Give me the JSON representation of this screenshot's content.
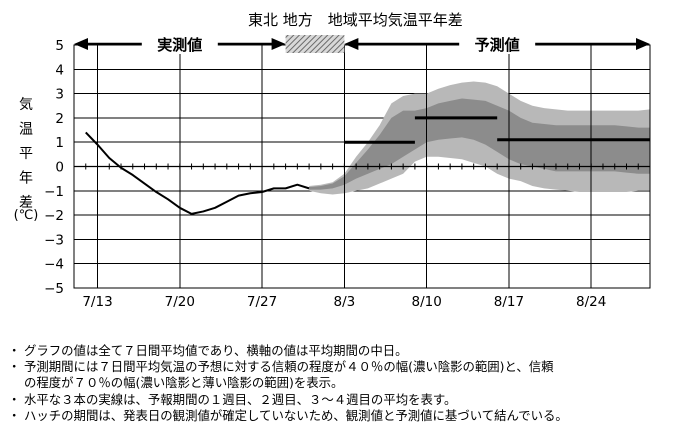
{
  "chart_data": {
    "type": "line",
    "title": "東北 地方　地域平均気温平年差",
    "ylabel_chars": [
      "気",
      "温",
      "平",
      "年",
      "差"
    ],
    "yunit": "(℃)",
    "ylim": [
      -5,
      5
    ],
    "yticks": [
      5,
      4,
      3,
      2,
      1,
      0,
      -1,
      -2,
      -3,
      -4,
      -5
    ],
    "xlim": [
      "2023-07-11",
      "2023-08-29"
    ],
    "xticks": [
      {
        "date": "2023-07-13",
        "label": "7/13"
      },
      {
        "date": "2023-07-20",
        "label": "7/20"
      },
      {
        "date": "2023-07-27",
        "label": "7/27"
      },
      {
        "date": "2023-08-03",
        "label": "8/3"
      },
      {
        "date": "2023-08-10",
        "label": "8/10"
      },
      {
        "date": "2023-08-17",
        "label": "8/17"
      },
      {
        "date": "2023-08-24",
        "label": "8/24"
      }
    ],
    "periods": {
      "observed_label": "実測値",
      "observed_range": [
        "2023-07-11",
        "2023-07-29"
      ],
      "hatch_range": [
        "2023-07-29",
        "2023-08-03"
      ],
      "forecast_label": "予測値",
      "forecast_range": [
        "2023-08-03",
        "2023-08-29"
      ]
    },
    "observed": [
      [
        "2023-07-12",
        1.4
      ],
      [
        "2023-07-13",
        0.9
      ],
      [
        "2023-07-14",
        0.35
      ],
      [
        "2023-07-15",
        -0.05
      ],
      [
        "2023-07-16",
        -0.35
      ],
      [
        "2023-07-17",
        -0.7
      ],
      [
        "2023-07-18",
        -1.05
      ],
      [
        "2023-07-19",
        -1.35
      ],
      [
        "2023-07-20",
        -1.7
      ],
      [
        "2023-07-21",
        -1.95
      ],
      [
        "2023-07-22",
        -1.85
      ],
      [
        "2023-07-23",
        -1.7
      ],
      [
        "2023-07-24",
        -1.45
      ],
      [
        "2023-07-25",
        -1.2
      ],
      [
        "2023-07-26",
        -1.1
      ],
      [
        "2023-07-27",
        -1.05
      ],
      [
        "2023-07-28",
        -0.9
      ],
      [
        "2023-07-29",
        -0.9
      ],
      [
        "2023-07-30",
        -0.75
      ],
      [
        "2023-07-31",
        -0.9
      ]
    ],
    "band_70": [
      [
        "2023-07-31",
        -1.0,
        -0.8
      ],
      [
        "2023-08-01",
        -1.1,
        -0.75
      ],
      [
        "2023-08-02",
        -1.15,
        -0.65
      ],
      [
        "2023-08-03",
        -1.1,
        -0.3
      ],
      [
        "2023-08-04",
        -1.0,
        0.4
      ],
      [
        "2023-08-05",
        -0.9,
        1.0
      ],
      [
        "2023-08-06",
        -0.7,
        1.7
      ],
      [
        "2023-08-07",
        -0.5,
        2.6
      ],
      [
        "2023-08-08",
        -0.3,
        2.9
      ],
      [
        "2023-08-09",
        0.2,
        3.0
      ],
      [
        "2023-08-10",
        0.4,
        3.0
      ],
      [
        "2023-08-11",
        0.4,
        3.2
      ],
      [
        "2023-08-12",
        0.35,
        3.35
      ],
      [
        "2023-08-13",
        0.3,
        3.45
      ],
      [
        "2023-08-14",
        0.15,
        3.5
      ],
      [
        "2023-08-15",
        0.0,
        3.45
      ],
      [
        "2023-08-16",
        -0.3,
        3.3
      ],
      [
        "2023-08-17",
        -0.5,
        3.0
      ],
      [
        "2023-08-18",
        -0.6,
        2.7
      ],
      [
        "2023-08-19",
        -0.8,
        2.5
      ],
      [
        "2023-08-20",
        -0.9,
        2.4
      ],
      [
        "2023-08-21",
        -0.95,
        2.35
      ],
      [
        "2023-08-22",
        -1.0,
        2.3
      ],
      [
        "2023-08-23",
        -1.05,
        2.3
      ],
      [
        "2023-08-24",
        -1.05,
        2.3
      ],
      [
        "2023-08-25",
        -1.05,
        2.3
      ],
      [
        "2023-08-26",
        -1.05,
        2.3
      ],
      [
        "2023-08-27",
        -1.05,
        2.3
      ],
      [
        "2023-08-28",
        -1.0,
        2.3
      ],
      [
        "2023-08-29",
        -1.0,
        2.35
      ]
    ],
    "band_40": [
      [
        "2023-07-31",
        -0.95,
        -0.85
      ],
      [
        "2023-08-01",
        -0.95,
        -0.8
      ],
      [
        "2023-08-02",
        -0.9,
        -0.7
      ],
      [
        "2023-08-03",
        -0.75,
        -0.4
      ],
      [
        "2023-08-04",
        -0.5,
        0.15
      ],
      [
        "2023-08-05",
        -0.3,
        0.7
      ],
      [
        "2023-08-06",
        -0.1,
        1.3
      ],
      [
        "2023-08-07",
        0.1,
        2.0
      ],
      [
        "2023-08-08",
        0.4,
        2.3
      ],
      [
        "2023-08-09",
        0.7,
        2.3
      ],
      [
        "2023-08-10",
        1.0,
        2.4
      ],
      [
        "2023-08-11",
        1.1,
        2.6
      ],
      [
        "2023-08-12",
        1.15,
        2.7
      ],
      [
        "2023-08-13",
        1.2,
        2.8
      ],
      [
        "2023-08-14",
        1.1,
        2.75
      ],
      [
        "2023-08-15",
        0.9,
        2.7
      ],
      [
        "2023-08-16",
        0.6,
        2.5
      ],
      [
        "2023-08-17",
        0.3,
        2.3
      ],
      [
        "2023-08-18",
        0.1,
        2.0
      ],
      [
        "2023-08-19",
        0.0,
        1.8
      ],
      [
        "2023-08-20",
        -0.1,
        1.75
      ],
      [
        "2023-08-21",
        -0.2,
        1.7
      ],
      [
        "2023-08-22",
        -0.2,
        1.7
      ],
      [
        "2023-08-23",
        -0.2,
        1.7
      ],
      [
        "2023-08-24",
        -0.2,
        1.7
      ],
      [
        "2023-08-25",
        -0.2,
        1.7
      ],
      [
        "2023-08-26",
        -0.2,
        1.7
      ],
      [
        "2023-08-27",
        -0.25,
        1.65
      ],
      [
        "2023-08-28",
        -0.3,
        1.6
      ],
      [
        "2023-08-29",
        -0.3,
        1.6
      ]
    ],
    "week_means": [
      {
        "from": "2023-08-03",
        "to": "2023-08-09",
        "value": 1.0
      },
      {
        "from": "2023-08-09",
        "to": "2023-08-16",
        "value": 2.0
      },
      {
        "from": "2023-08-16",
        "to": "2023-08-29",
        "value": 1.1
      }
    ],
    "grid": true
  },
  "notes": [
    "グラフの値は全て７日間平均値であり、横軸の値は平均期間の中日。",
    "予測期間には７日間平均気温の予想に対する信頼の程度が４０％の幅(濃い陰影の範囲)と、信頼",
    "の程度が７０％の幅(濃い陰影と薄い陰影の範囲)を表示。",
    "水平な３本の実線は、予報期間の１週目、２週目、３～４週目の平均を表す。",
    "ハッチの期間は、発表日の観測値が確定していないため、観測値と予測値に基づいて結んでいる。"
  ],
  "bullet": "・"
}
